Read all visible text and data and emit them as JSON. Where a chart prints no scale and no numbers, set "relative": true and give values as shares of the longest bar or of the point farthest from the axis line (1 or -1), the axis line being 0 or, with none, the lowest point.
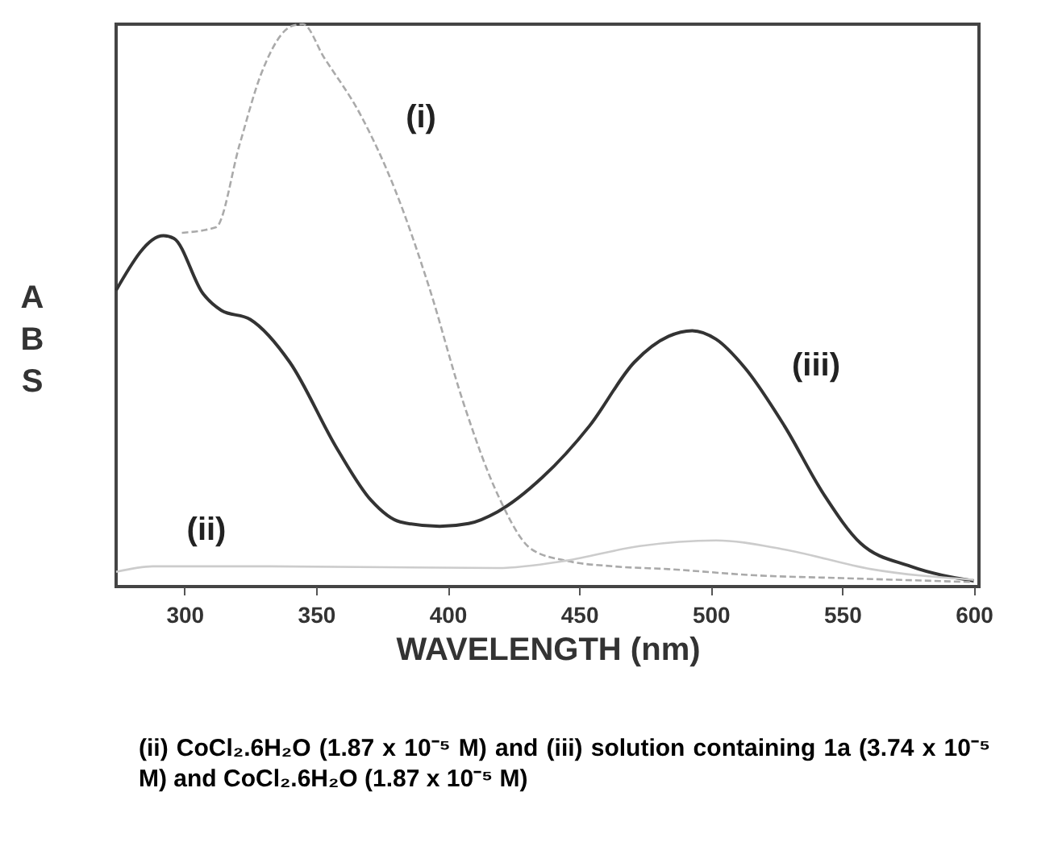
{
  "chart_data": {
    "type": "line",
    "xlabel": "WAVELENGTH (nm)",
    "ylabel": "ABS",
    "relative": true,
    "xlim": [
      274,
      602
    ],
    "xticks": [
      300,
      350,
      400,
      450,
      500,
      550,
      600
    ],
    "grid": false,
    "series": [
      {
        "name": "(iii)",
        "color": "#333333",
        "line_style": "solid",
        "x": [
          274,
          292,
          296,
          307,
          314,
          325,
          340,
          358,
          371,
          382,
          397,
          408,
          419,
          436,
          454,
          471,
          484,
          493,
          502,
          513,
          528,
          543,
          557,
          576,
          600
        ],
        "values": [
          0.527,
          0.624,
          0.619,
          0.521,
          0.491,
          0.475,
          0.399,
          0.245,
          0.153,
          0.115,
          0.107,
          0.112,
          0.133,
          0.194,
          0.286,
          0.399,
          0.445,
          0.455,
          0.44,
          0.389,
          0.286,
          0.164,
          0.077,
          0.036,
          0.01
        ]
      },
      {
        "name": "(i)",
        "color": "#aaaaaa",
        "line_style": "dashed",
        "x": [
          299,
          312,
          321,
          329,
          341,
          345,
          353,
          367,
          380,
          393,
          406,
          419,
          432,
          445,
          463,
          484,
          517,
          550,
          600
        ],
        "values": [
          0.629,
          0.639,
          0.787,
          0.91,
          0.997,
          1.0,
          0.941,
          0.838,
          0.706,
          0.532,
          0.327,
          0.164,
          0.066,
          0.046,
          0.036,
          0.031,
          0.02,
          0.015,
          0.008
        ]
      },
      {
        "name": "(ii)",
        "color": "#cccccc",
        "line_style": "solid",
        "x": [
          274,
          288,
          332,
          419,
          445,
          473,
          502,
          528,
          561,
          600
        ],
        "values": [
          0.026,
          0.036,
          0.036,
          0.033,
          0.046,
          0.072,
          0.082,
          0.066,
          0.031,
          0.012
        ]
      }
    ],
    "annotations": [
      "(ii) CoCl₂.6H₂O (1.87 x 10⁻⁵ M) and (iii) solution containing 1a (3.74 x 10⁻⁵ M) and CoCl₂.6H₂O (1.87 x 10⁻⁵ M)"
    ]
  }
}
